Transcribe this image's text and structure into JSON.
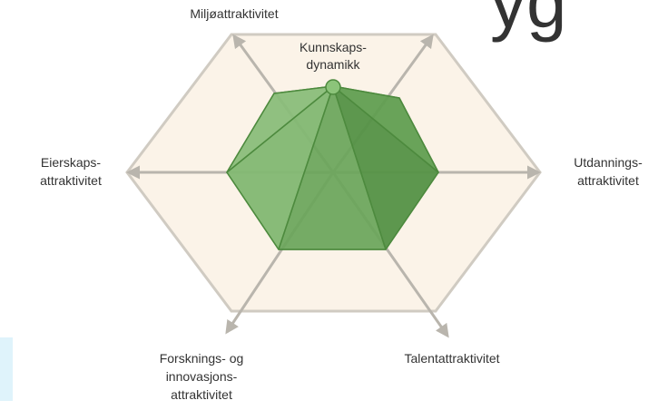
{
  "title_fragment": "yg",
  "nodes": [
    {
      "label": [
        "Miljøattraktivitet"
      ]
    },
    {
      "label": [
        "Kunnskaps-",
        "dynamikk"
      ]
    },
    {
      "label": [
        "Eierskaps-",
        "attraktivitet"
      ]
    },
    {
      "label": [
        "Utdannings-",
        "attraktivitet"
      ]
    },
    {
      "label": [
        "Forsknings- og",
        "innovasjons-",
        "attraktivitet"
      ]
    },
    {
      "label": [
        "Talentattraktivitet"
      ]
    }
  ]
}
